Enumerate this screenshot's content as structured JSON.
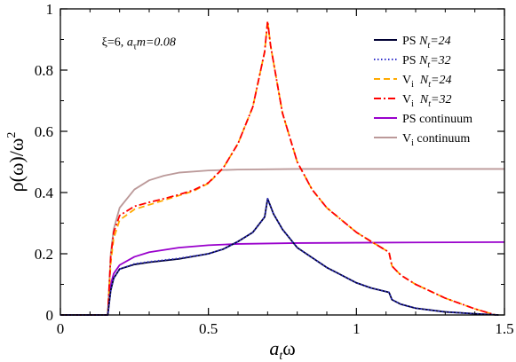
{
  "chart_data": {
    "type": "line",
    "xlabel": {
      "base": "a",
      "sub": "t",
      "tail": "ω"
    },
    "ylabel": {
      "main": "ρ(ω)/ω",
      "sup": "2"
    },
    "xlim": [
      0,
      1.5
    ],
    "ylim": [
      0,
      1
    ],
    "x_ticks": [
      0,
      0.5,
      1,
      1.5
    ],
    "x_tick_labels": [
      "0",
      "0.5",
      "1",
      "1.5"
    ],
    "y_ticks": [
      0,
      0.2,
      0.4,
      0.6,
      0.8,
      1
    ],
    "y_tick_labels": [
      "0",
      "0.2",
      "0.4",
      "0.6",
      "0.8",
      "1"
    ],
    "grid": false,
    "legend_position": "top-right",
    "annotation": {
      "greek": "ξ",
      "mid": "=6, ",
      "a": "a",
      "a_sub": "τ",
      "tail": "m=0.08"
    },
    "series": [
      {
        "name": "PS  N_t=24",
        "legend": {
          "label": "PS ",
          "n": "N",
          "nsub": "t",
          "nval": "=24"
        },
        "color": "#000033",
        "dash": "none",
        "width": 1.8,
        "points": [
          [
            0,
            0
          ],
          [
            0.16,
            0
          ],
          [
            0.17,
            0.08
          ],
          [
            0.18,
            0.12
          ],
          [
            0.2,
            0.15
          ],
          [
            0.25,
            0.165
          ],
          [
            0.3,
            0.172
          ],
          [
            0.4,
            0.183
          ],
          [
            0.5,
            0.2
          ],
          [
            0.55,
            0.215
          ],
          [
            0.6,
            0.24
          ],
          [
            0.65,
            0.27
          ],
          [
            0.69,
            0.32
          ],
          [
            0.7,
            0.38
          ],
          [
            0.72,
            0.33
          ],
          [
            0.75,
            0.28
          ],
          [
            0.8,
            0.22
          ],
          [
            0.9,
            0.155
          ],
          [
            1.0,
            0.105
          ],
          [
            1.05,
            0.088
          ],
          [
            1.11,
            0.074
          ],
          [
            1.12,
            0.05
          ],
          [
            1.15,
            0.035
          ],
          [
            1.2,
            0.022
          ],
          [
            1.3,
            0.01
          ],
          [
            1.4,
            0.004
          ],
          [
            1.48,
            0
          ]
        ]
      },
      {
        "name": "PS  N_t=32",
        "legend": {
          "label": "PS ",
          "n": "N",
          "nsub": "t",
          "nval": "=32"
        },
        "color": "#3333cc",
        "dash": "1.5,2.5",
        "width": 1.8,
        "points": [
          [
            0,
            0
          ],
          [
            0.16,
            0
          ],
          [
            0.17,
            0.08
          ],
          [
            0.18,
            0.12
          ],
          [
            0.2,
            0.15
          ],
          [
            0.25,
            0.167
          ],
          [
            0.3,
            0.174
          ],
          [
            0.4,
            0.185
          ],
          [
            0.5,
            0.2
          ],
          [
            0.55,
            0.215
          ],
          [
            0.6,
            0.24
          ],
          [
            0.65,
            0.27
          ],
          [
            0.69,
            0.32
          ],
          [
            0.7,
            0.38
          ],
          [
            0.72,
            0.33
          ],
          [
            0.75,
            0.28
          ],
          [
            0.8,
            0.22
          ],
          [
            0.9,
            0.155
          ],
          [
            1.0,
            0.105
          ],
          [
            1.05,
            0.088
          ],
          [
            1.11,
            0.074
          ],
          [
            1.12,
            0.05
          ],
          [
            1.15,
            0.035
          ],
          [
            1.2,
            0.022
          ],
          [
            1.3,
            0.01
          ],
          [
            1.4,
            0.004
          ],
          [
            1.48,
            0
          ]
        ]
      },
      {
        "name": "V_i  N_t=24",
        "legend": {
          "label": "V",
          "lsub": "i",
          "n": "N",
          "nsub": "t",
          "nval": "=24"
        },
        "color": "#ffaa00",
        "dash": "7,4",
        "width": 1.8,
        "points": [
          [
            0,
            0
          ],
          [
            0.16,
            0
          ],
          [
            0.17,
            0.17
          ],
          [
            0.18,
            0.25
          ],
          [
            0.2,
            0.31
          ],
          [
            0.25,
            0.345
          ],
          [
            0.3,
            0.36
          ],
          [
            0.35,
            0.375
          ],
          [
            0.4,
            0.39
          ],
          [
            0.45,
            0.405
          ],
          [
            0.5,
            0.43
          ],
          [
            0.55,
            0.48
          ],
          [
            0.6,
            0.56
          ],
          [
            0.65,
            0.68
          ],
          [
            0.69,
            0.86
          ],
          [
            0.7,
            0.96
          ],
          [
            0.71,
            0.88
          ],
          [
            0.75,
            0.66
          ],
          [
            0.8,
            0.5
          ],
          [
            0.85,
            0.41
          ],
          [
            0.9,
            0.35
          ],
          [
            1.0,
            0.27
          ],
          [
            1.05,
            0.24
          ],
          [
            1.11,
            0.205
          ],
          [
            1.12,
            0.16
          ],
          [
            1.15,
            0.13
          ],
          [
            1.2,
            0.1
          ],
          [
            1.3,
            0.055
          ],
          [
            1.4,
            0.02
          ],
          [
            1.47,
            0
          ]
        ]
      },
      {
        "name": "V_i  N_t=32",
        "legend": {
          "label": "V",
          "lsub": "i",
          "n": "N",
          "nsub": "t",
          "nval": "=32"
        },
        "color": "#ff0000",
        "dash": "8,3,2,3",
        "width": 1.8,
        "points": [
          [
            0,
            0
          ],
          [
            0.16,
            0
          ],
          [
            0.17,
            0.19
          ],
          [
            0.18,
            0.27
          ],
          [
            0.2,
            0.325
          ],
          [
            0.25,
            0.355
          ],
          [
            0.3,
            0.368
          ],
          [
            0.35,
            0.38
          ],
          [
            0.4,
            0.393
          ],
          [
            0.45,
            0.408
          ],
          [
            0.5,
            0.432
          ],
          [
            0.55,
            0.48
          ],
          [
            0.6,
            0.56
          ],
          [
            0.65,
            0.68
          ],
          [
            0.69,
            0.86
          ],
          [
            0.7,
            0.96
          ],
          [
            0.71,
            0.88
          ],
          [
            0.75,
            0.66
          ],
          [
            0.8,
            0.5
          ],
          [
            0.85,
            0.41
          ],
          [
            0.9,
            0.35
          ],
          [
            1.0,
            0.27
          ],
          [
            1.05,
            0.24
          ],
          [
            1.11,
            0.205
          ],
          [
            1.12,
            0.16
          ],
          [
            1.15,
            0.13
          ],
          [
            1.2,
            0.1
          ],
          [
            1.3,
            0.055
          ],
          [
            1.4,
            0.02
          ],
          [
            1.47,
            0
          ]
        ]
      },
      {
        "name": "PS  continuum",
        "legend": {
          "label": "PS  continuum"
        },
        "color": "#9900cc",
        "dash": "none",
        "width": 1.8,
        "points": [
          [
            0,
            0
          ],
          [
            0.16,
            0
          ],
          [
            0.17,
            0.1
          ],
          [
            0.18,
            0.135
          ],
          [
            0.2,
            0.163
          ],
          [
            0.25,
            0.19
          ],
          [
            0.3,
            0.205
          ],
          [
            0.4,
            0.22
          ],
          [
            0.5,
            0.228
          ],
          [
            0.6,
            0.232
          ],
          [
            0.8,
            0.235
          ],
          [
            1.0,
            0.236
          ],
          [
            1.2,
            0.237
          ],
          [
            1.5,
            0.238
          ]
        ]
      },
      {
        "name": "V_i  continuum",
        "legend": {
          "label": "V",
          "lsub": "i",
          "tail": " continuum"
        },
        "color": "#bb9999",
        "dash": "none",
        "width": 1.8,
        "points": [
          [
            0,
            0
          ],
          [
            0.16,
            0
          ],
          [
            0.17,
            0.2
          ],
          [
            0.18,
            0.28
          ],
          [
            0.2,
            0.35
          ],
          [
            0.25,
            0.41
          ],
          [
            0.3,
            0.44
          ],
          [
            0.35,
            0.455
          ],
          [
            0.4,
            0.465
          ],
          [
            0.5,
            0.472
          ],
          [
            0.6,
            0.475
          ],
          [
            0.8,
            0.477
          ],
          [
            1.0,
            0.477
          ],
          [
            1.2,
            0.477
          ],
          [
            1.5,
            0.477
          ]
        ]
      }
    ]
  }
}
